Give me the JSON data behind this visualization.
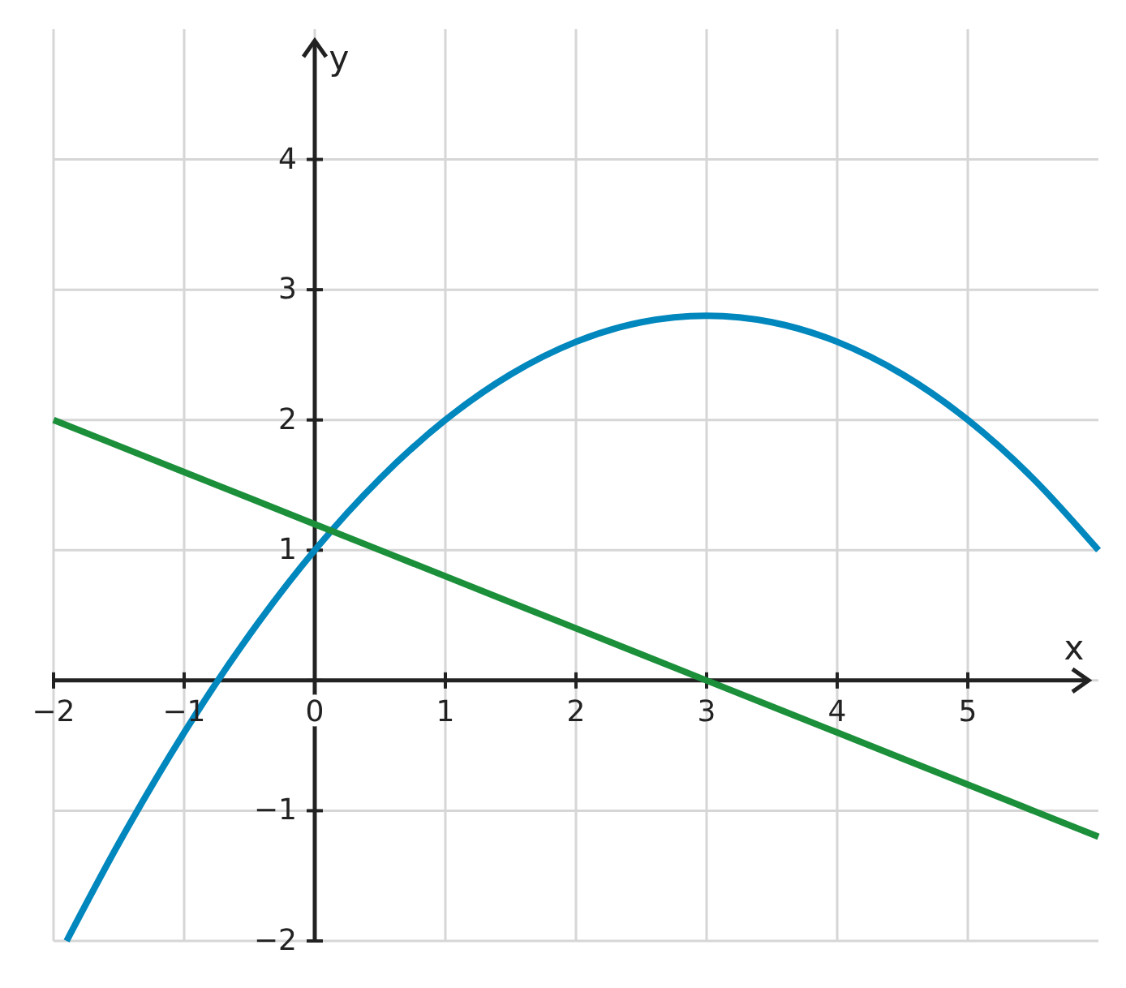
{
  "chart_data": {
    "type": "line",
    "xlabel": "x",
    "ylabel": "y",
    "series": [
      {
        "color": "#0087bd",
        "x": [
          -1.9,
          -1.5,
          -1,
          -0.5,
          0,
          0.5,
          1,
          1.5,
          2,
          2.5,
          3,
          3.5,
          4,
          4.5,
          5,
          5.5,
          6
        ],
        "values": [
          -2.0,
          -1.25,
          -0.4,
          0.35,
          1,
          1.55,
          2,
          2.35,
          2.6,
          2.75,
          2.8,
          2.75,
          2.6,
          2.35,
          2,
          1.55,
          1
        ]
      },
      {
        "color": "#1b8f3a",
        "x": [
          -2,
          -1,
          0,
          1,
          2,
          3,
          4,
          5,
          6
        ],
        "values": [
          2,
          1.6,
          1.2,
          0.8,
          0.4,
          0,
          -0.4,
          -0.8,
          -1.2
        ]
      }
    ],
    "xlim": [
      -2,
      6
    ],
    "ylim": [
      -2,
      5
    ],
    "xticks": [
      -2,
      -1,
      0,
      1,
      2,
      3,
      4,
      5
    ],
    "yticks": [
      -2,
      -1,
      {
        "value": 0,
        "label": null
      },
      1,
      2,
      3,
      4
    ],
    "grid": true
  }
}
